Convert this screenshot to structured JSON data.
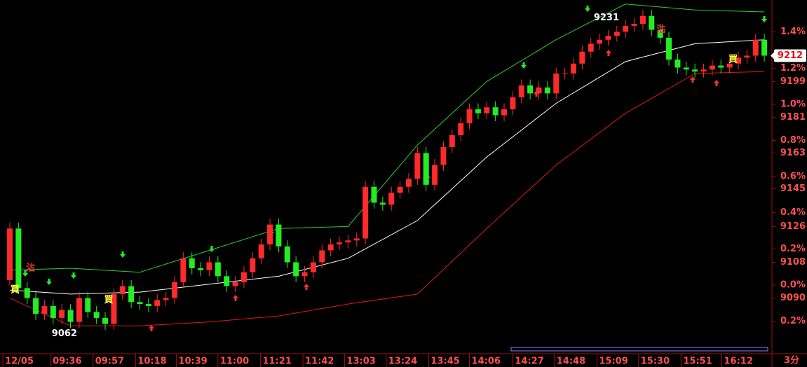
{
  "chart_data": {
    "type": "candlestick",
    "period": "3分",
    "up_color": "#ff2a2a",
    "down_color": "#22ee22",
    "open": [
      9099,
      9125,
      9095,
      9090,
      9082,
      9086,
      9080,
      9084,
      9078,
      9090,
      9083,
      9080,
      9077,
      9092,
      9096,
      9088,
      9087,
      9086,
      9089,
      9090,
      9098,
      9110,
      9105,
      9104,
      9108,
      9101,
      9096,
      9098,
      9103,
      9110,
      9117,
      9127,
      9116,
      9108,
      9101,
      9103,
      9108,
      9114,
      9117,
      9118,
      9119,
      9120,
      9146,
      9138,
      9137,
      9143,
      9146,
      9150,
      9163,
      9147,
      9157,
      9166,
      9172,
      9178,
      9185,
      9183,
      9186,
      9182,
      9185,
      9191,
      9197,
      9193,
      9196,
      9193,
      9203,
      9203,
      9208,
      9214,
      9218,
      9220,
      9222,
      9224,
      9227,
      9228,
      9232,
      9225,
      9221,
      9210,
      9206,
      9205,
      9204,
      9205,
      9207,
      9206,
      9208,
      9211,
      9212,
      9220
    ],
    "high": [
      9128,
      9128,
      9098,
      9093,
      9089,
      9089,
      9087,
      9087,
      9093,
      9093,
      9086,
      9083,
      9095,
      9099,
      9099,
      9091,
      9090,
      9092,
      9093,
      9101,
      9113,
      9113,
      9108,
      9111,
      9111,
      9104,
      9101,
      9106,
      9113,
      9120,
      9130,
      9130,
      9119,
      9111,
      9106,
      9111,
      9117,
      9120,
      9121,
      9122,
      9123,
      9149,
      9149,
      9141,
      9146,
      9149,
      9153,
      9166,
      9166,
      9160,
      9169,
      9175,
      9181,
      9188,
      9188,
      9189,
      9189,
      9188,
      9194,
      9200,
      9200,
      9199,
      9199,
      9206,
      9206,
      9211,
      9217,
      9221,
      9223,
      9225,
      9227,
      9230,
      9231,
      9235,
      9235,
      9228,
      9224,
      9213,
      9209,
      9208,
      9208,
      9210,
      9210,
      9211,
      9214,
      9215,
      9223,
      9223
    ],
    "low": [
      9096,
      9092,
      9087,
      9079,
      9079,
      9077,
      9077,
      9075,
      9075,
      9080,
      9077,
      9074,
      9074,
      9089,
      9085,
      9084,
      9083,
      9083,
      9086,
      9087,
      9095,
      9102,
      9101,
      9101,
      9098,
      9093,
      9093,
      9095,
      9100,
      9107,
      9114,
      9113,
      9105,
      9098,
      9098,
      9100,
      9105,
      9111,
      9114,
      9115,
      9116,
      9117,
      9135,
      9134,
      9134,
      9140,
      9143,
      9147,
      9144,
      9144,
      9154,
      9163,
      9169,
      9175,
      9180,
      9180,
      9179,
      9179,
      9182,
      9188,
      9190,
      9190,
      9190,
      9190,
      9200,
      9200,
      9205,
      9211,
      9215,
      9217,
      9219,
      9221,
      9224,
      9225,
      9222,
      9218,
      9207,
      9203,
      9202,
      9201,
      9201,
      9202,
      9203,
      9203,
      9205,
      9208,
      9209,
      9209
    ],
    "close": [
      9125,
      9095,
      9090,
      9082,
      9086,
      9080,
      9084,
      9078,
      9090,
      9083,
      9080,
      9077,
      9092,
      9096,
      9088,
      9087,
      9086,
      9089,
      9090,
      9098,
      9110,
      9105,
      9104,
      9108,
      9101,
      9096,
      9098,
      9103,
      9110,
      9117,
      9127,
      9116,
      9108,
      9101,
      9103,
      9108,
      9114,
      9117,
      9118,
      9119,
      9120,
      9146,
      9138,
      9137,
      9143,
      9146,
      9150,
      9163,
      9147,
      9157,
      9166,
      9172,
      9178,
      9185,
      9183,
      9186,
      9182,
      9185,
      9191,
      9197,
      9193,
      9196,
      9193,
      9203,
      9203,
      9208,
      9214,
      9218,
      9220,
      9222,
      9224,
      9227,
      9228,
      9232,
      9225,
      9221,
      9210,
      9206,
      9205,
      9204,
      9205,
      9207,
      9206,
      9208,
      9211,
      9212,
      9220,
      9212
    ],
    "bands": [
      {
        "color": "#2ecc2e",
        "x": [
          0,
          7,
          15,
          23,
          31,
          39,
          47,
          55,
          63,
          71,
          79,
          87
        ],
        "values": [
          9104,
          9105,
          9103,
          9114,
          9125,
          9126,
          9167,
          9199,
          9220,
          9238,
          9235,
          9234
        ]
      },
      {
        "color": "#ffffff",
        "x": [
          0,
          7,
          15,
          23,
          31,
          39,
          47,
          55,
          63,
          71,
          79,
          87
        ],
        "values": [
          9094,
          9092,
          9093,
          9097,
          9101,
          9110,
          9129,
          9161,
          9188,
          9209,
          9218,
          9220
        ]
      },
      {
        "color": "#e01818",
        "x": [
          0,
          7,
          15,
          23,
          31,
          39,
          47,
          55,
          63,
          71,
          79,
          87
        ],
        "values": [
          9090,
          9076,
          9076,
          9078,
          9081,
          9087,
          9092,
          9125,
          9157,
          9183,
          9203,
          9204
        ]
      }
    ],
    "xlim": [
      -1.13,
      87.8
    ],
    "ylim": [
      9062,
      9240
    ],
    "yticks": [
      9090,
      9108,
      9126,
      9145,
      9163,
      9181,
      9199
    ],
    "y2lim": [
      -0.38,
      1.577
    ],
    "y2ticks": [
      {
        "value": -0.2,
        "label": "0.2%"
      },
      {
        "value": 0,
        "label": "0.0%"
      },
      {
        "value": 0.2,
        "label": "0.2%"
      },
      {
        "value": 0.4,
        "label": "0.4%"
      },
      {
        "value": 0.6,
        "label": "0.6%"
      },
      {
        "value": 0.8,
        "label": "0.8%"
      },
      {
        "value": 1.0,
        "label": "1.0%"
      },
      {
        "value": 1.2,
        "label": "1.2%"
      },
      {
        "value": 1.4,
        "label": "1.4%"
      }
    ],
    "xticks": [
      {
        "value": -0.8,
        "label": "12/05"
      },
      {
        "value": 4.7,
        "label": "09:36"
      },
      {
        "value": 9.6,
        "label": "09:57"
      },
      {
        "value": 14.5,
        "label": "10:18"
      },
      {
        "value": 19.2,
        "label": "10:39"
      },
      {
        "value": 24,
        "label": "11:00"
      },
      {
        "value": 28.9,
        "label": "11:21"
      },
      {
        "value": 33.8,
        "label": "11:42"
      },
      {
        "value": 38.6,
        "label": "13:03"
      },
      {
        "value": 43.4,
        "label": "13:24"
      },
      {
        "value": 48.3,
        "label": "13:45"
      },
      {
        "value": 53,
        "label": "14:06"
      },
      {
        "value": 58,
        "label": "14:27"
      },
      {
        "value": 62.8,
        "label": "14:48"
      },
      {
        "value": 67.7,
        "label": "15:09"
      },
      {
        "value": 72.5,
        "label": "15:30"
      },
      {
        "value": 77.4,
        "label": "15:51"
      },
      {
        "value": 82.1,
        "label": "16:12"
      }
    ],
    "annotations": [
      {
        "text": "9231",
        "x": 68.8,
        "y": 9231,
        "color": "#ffffff"
      },
      {
        "text": "9062",
        "x": 6.3,
        "y": 9072,
        "color": "#ffffff"
      },
      {
        "text": "買",
        "x": 0.6,
        "y": 9094,
        "color": "#ffff40"
      },
      {
        "text": "買",
        "x": 11.4,
        "y": 9089,
        "color": "#ffff40"
      },
      {
        "text": "買",
        "x": 83.4,
        "y": 9210,
        "color": "#ffff40"
      },
      {
        "text": "沽",
        "x": 2.4,
        "y": 9105,
        "color": "#ff3030"
      },
      {
        "text": "沽",
        "x": 75.1,
        "y": 9225,
        "color": "#ff3030"
      }
    ]
  }
}
